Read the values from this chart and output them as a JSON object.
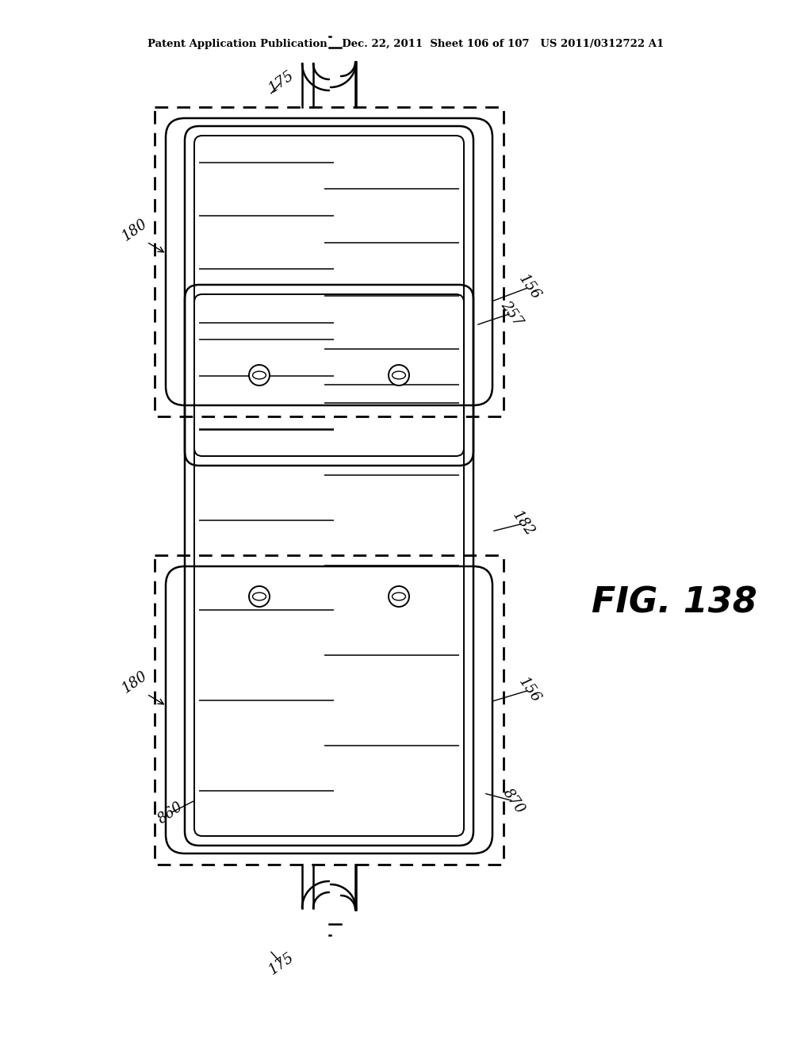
{
  "bg_color": "#ffffff",
  "line_color": "#000000",
  "header_text": "Patent Application Publication    Dec. 22, 2011  Sheet 106 of 107   US 2011/0312722 A1",
  "fig_label": "FIG. 138",
  "top_module": {
    "ox": 195,
    "oy": 135,
    "ow": 440,
    "oh": 390,
    "circles_at_bottom": true
  },
  "bot_module": {
    "ox": 195,
    "oy": 700,
    "ow": 440,
    "oh": 390,
    "circles_at_bottom": false
  }
}
